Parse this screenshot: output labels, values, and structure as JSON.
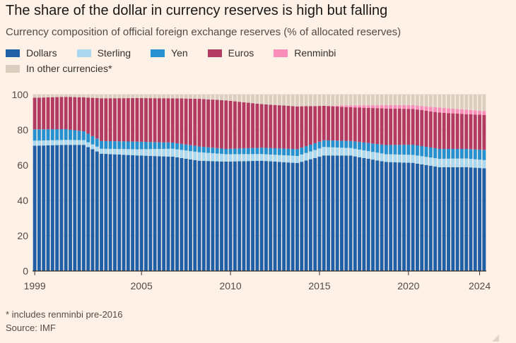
{
  "header": {
    "title": "The share of the dollar in currency reserves is high but falling",
    "subtitle": "Currency composition of official foreign exchange reserves (% of allocated reserves)"
  },
  "footer": {
    "note": "* includes renminbi pre-2016",
    "source": "Source: IMF"
  },
  "colors": {
    "background": "#fff1e5",
    "grid": "#e3d6cb",
    "axis": "#33302e"
  },
  "chart_data": {
    "type": "bar",
    "stacked": true,
    "title": "The share of the dollar in currency reserves is high but falling",
    "subtitle": "Currency composition of official foreign exchange reserves (% of allocated reserves)",
    "frequency": "quarterly",
    "x_start": "1999 Q1",
    "x_end": "2024 Q2",
    "xticks": [
      "1999",
      "2005",
      "2010",
      "2015",
      "2020",
      "2024"
    ],
    "yticks": [
      0,
      20,
      40,
      60,
      80,
      100
    ],
    "ylim": [
      0,
      100
    ],
    "grid": true,
    "legend_position": "top-left",
    "series_order": [
      "Dollars",
      "Sterling",
      "Yen",
      "Euros",
      "Renminbi",
      "In other currencies*"
    ],
    "series_colors": [
      "#1f5fa6",
      "#a9d8f0",
      "#2591d0",
      "#b33a63",
      "#fb8dba",
      "#dbcdc0"
    ],
    "keyframes": [
      {
        "x": "1999 Q1",
        "Dollars": 71.0,
        "Sterling": 2.9,
        "Yen": 6.4,
        "Euros": 17.9,
        "Renminbi": 0,
        "In other currencies*": 1.8
      },
      {
        "x": "2000 Q4",
        "Dollars": 71.5,
        "Sterling": 2.8,
        "Yen": 6.1,
        "Euros": 18.3,
        "Renminbi": 0,
        "In other currencies*": 1.3
      },
      {
        "x": "2001 Q4",
        "Dollars": 71.5,
        "Sterling": 2.7,
        "Yen": 5.0,
        "Euros": 19.2,
        "Renminbi": 0,
        "In other currencies*": 1.6
      },
      {
        "x": "2002 Q4",
        "Dollars": 66.5,
        "Sterling": 2.8,
        "Yen": 4.4,
        "Euros": 24.2,
        "Renminbi": 0,
        "In other currencies*": 2.1
      },
      {
        "x": "2004 Q4",
        "Dollars": 65.5,
        "Sterling": 3.5,
        "Yen": 4.3,
        "Euros": 24.7,
        "Renminbi": 0,
        "In other currencies*": 2.0
      },
      {
        "x": "2006 Q4",
        "Dollars": 64.8,
        "Sterling": 4.5,
        "Yen": 3.5,
        "Euros": 25.1,
        "Renminbi": 0,
        "In other currencies*": 2.1
      },
      {
        "x": "2008 Q2",
        "Dollars": 62.5,
        "Sterling": 4.8,
        "Yen": 3.3,
        "Euros": 27.0,
        "Renminbi": 0,
        "In other currencies*": 2.4
      },
      {
        "x": "2009 Q4",
        "Dollars": 62.0,
        "Sterling": 4.2,
        "Yen": 3.0,
        "Euros": 27.5,
        "Renminbi": 0,
        "In other currencies*": 3.3
      },
      {
        "x": "2011 Q4",
        "Dollars": 62.5,
        "Sterling": 3.8,
        "Yen": 3.6,
        "Euros": 24.7,
        "Renminbi": 0,
        "In other currencies*": 5.4
      },
      {
        "x": "2013 Q4",
        "Dollars": 61.2,
        "Sterling": 4.0,
        "Yen": 3.9,
        "Euros": 24.2,
        "Renminbi": 0,
        "In other currencies*": 6.7
      },
      {
        "x": "2015 Q2",
        "Dollars": 65.5,
        "Sterling": 4.8,
        "Yen": 3.8,
        "Euros": 19.5,
        "Renminbi": 0,
        "In other currencies*": 6.4
      },
      {
        "x": "2016 Q4",
        "Dollars": 65.4,
        "Sterling": 4.3,
        "Yen": 4.0,
        "Euros": 19.1,
        "Renminbi": 1.1,
        "In other currencies*": 6.1
      },
      {
        "x": "2018 Q4",
        "Dollars": 61.8,
        "Sterling": 4.4,
        "Yen": 5.2,
        "Euros": 20.7,
        "Renminbi": 1.9,
        "In other currencies*": 6.0
      },
      {
        "x": "2020 Q2",
        "Dollars": 61.3,
        "Sterling": 4.5,
        "Yen": 5.8,
        "Euros": 20.3,
        "Renminbi": 2.1,
        "In other currencies*": 6.0
      },
      {
        "x": "2021 Q4",
        "Dollars": 58.8,
        "Sterling": 4.8,
        "Yen": 5.6,
        "Euros": 20.6,
        "Renminbi": 2.8,
        "In other currencies*": 7.4
      },
      {
        "x": "2023 Q2",
        "Dollars": 58.9,
        "Sterling": 4.9,
        "Yen": 5.4,
        "Euros": 19.7,
        "Renminbi": 2.6,
        "In other currencies*": 8.5
      },
      {
        "x": "2024 Q2",
        "Dollars": 58.2,
        "Sterling": 4.7,
        "Yen": 5.8,
        "Euros": 19.8,
        "Renminbi": 2.1,
        "In other currencies*": 9.4
      }
    ]
  }
}
